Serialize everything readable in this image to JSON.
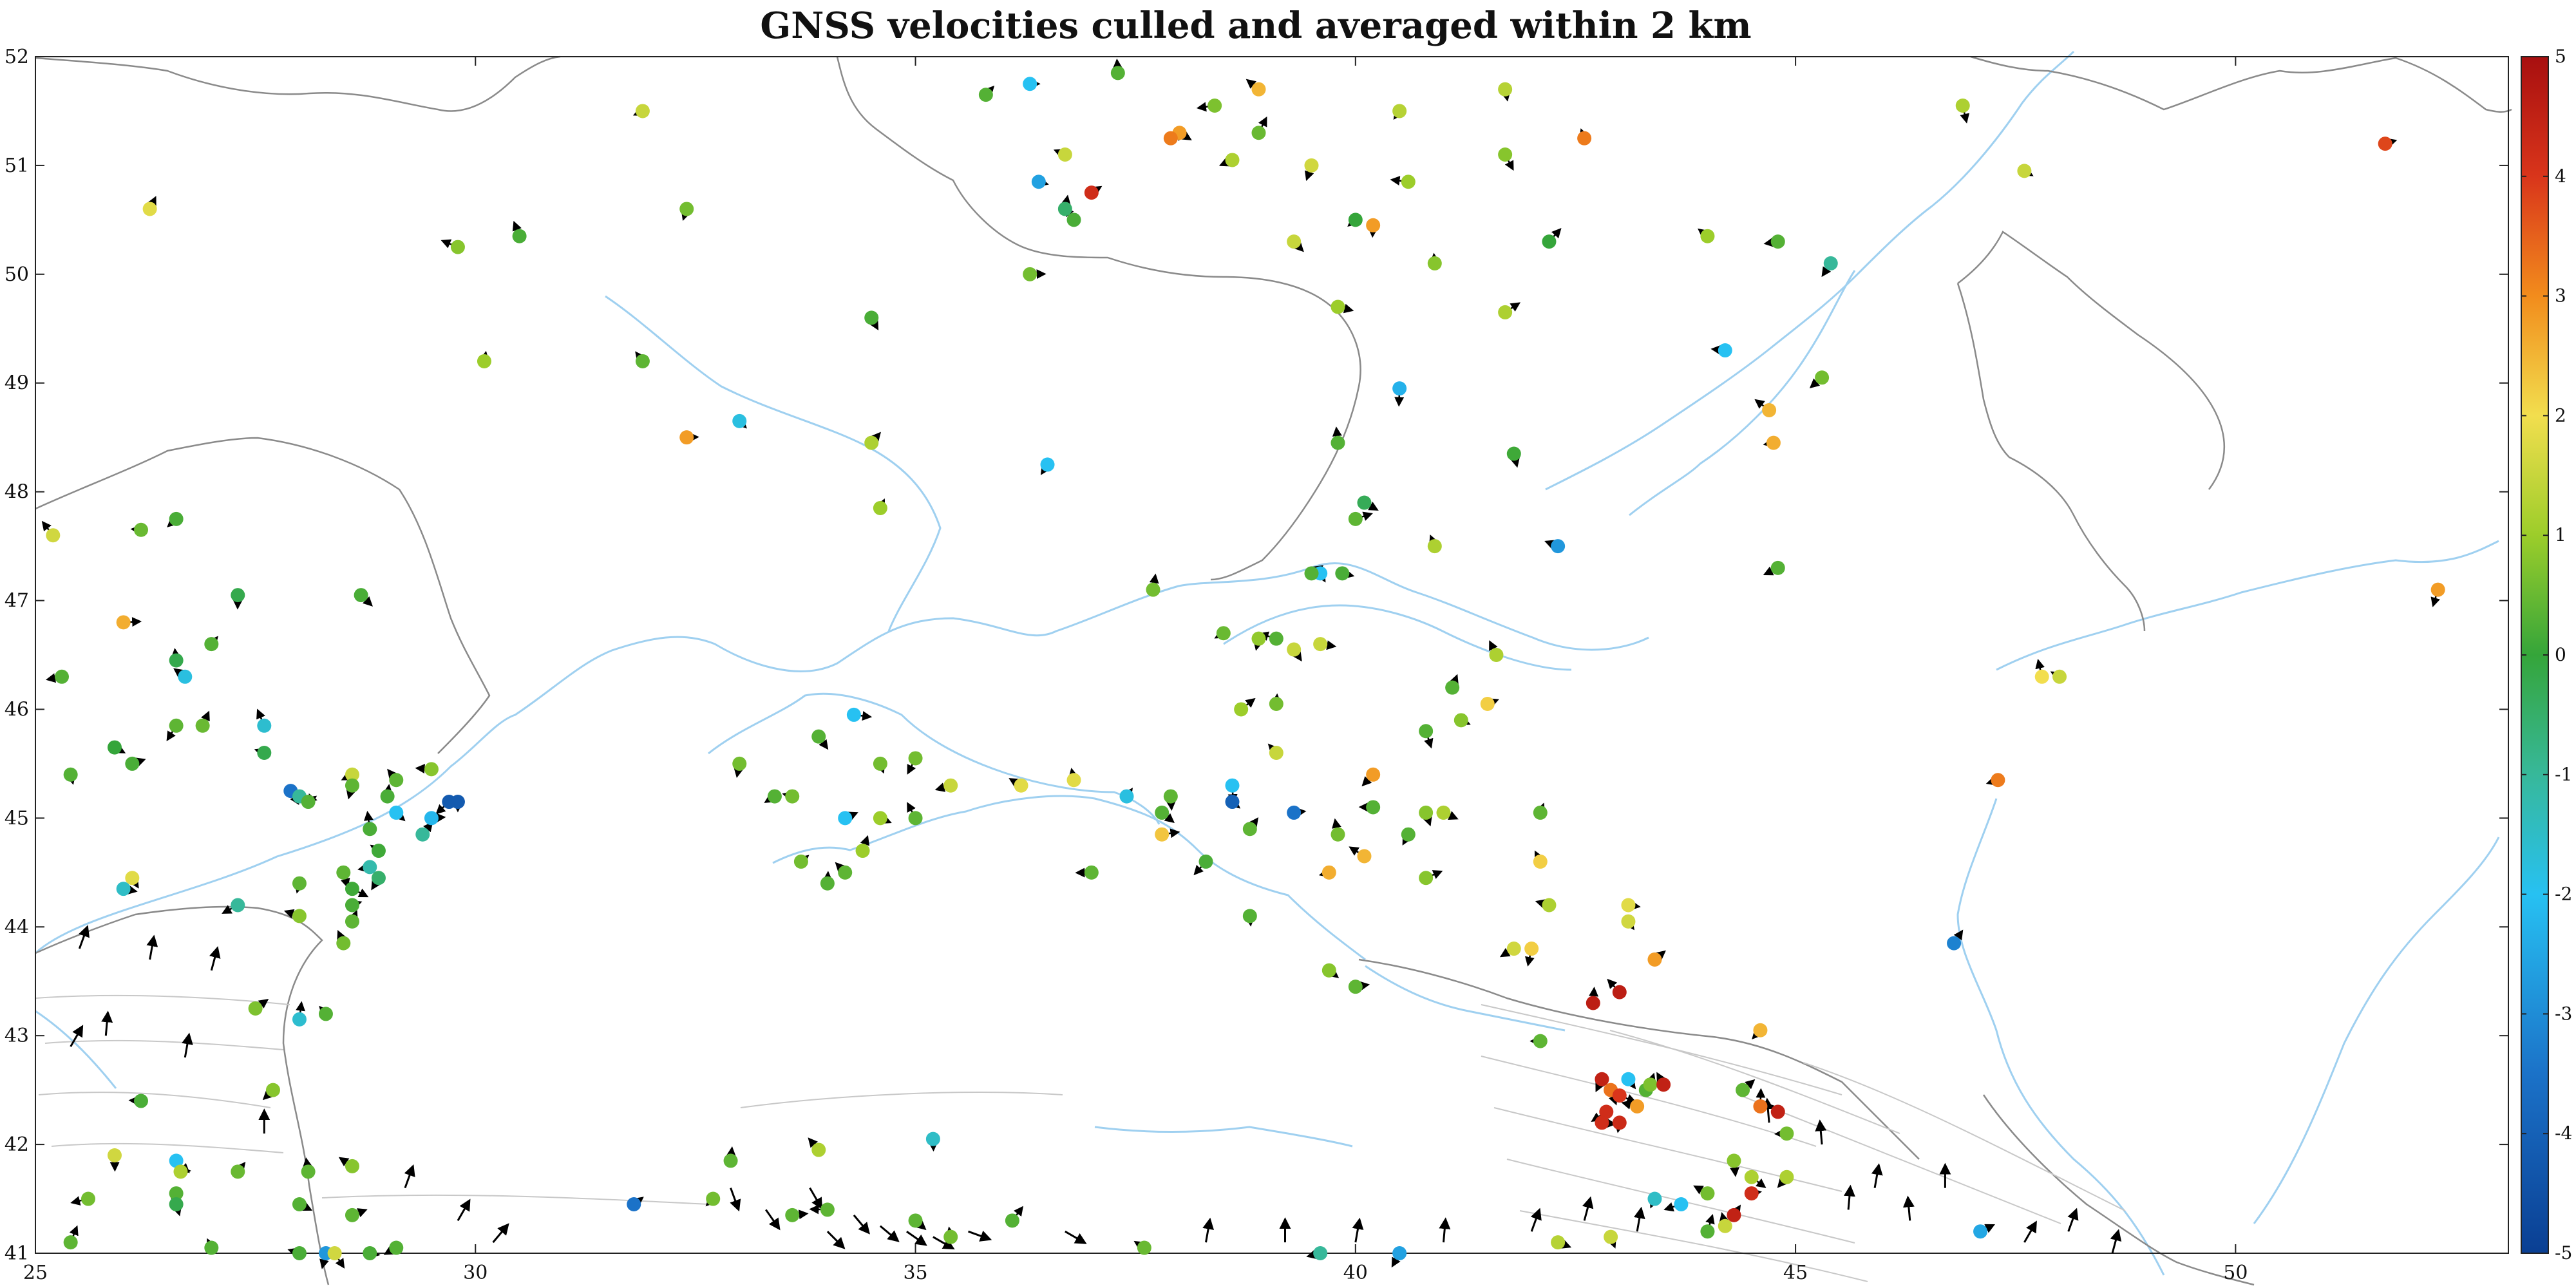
{
  "chart_data": {
    "type": "scatter",
    "title": "GNSS velocities culled and averaged within 2 km",
    "xlabel": "",
    "ylabel": "",
    "xlim": [
      25,
      53.1
    ],
    "ylim": [
      41,
      52
    ],
    "x_ticks": [
      "25",
      "30",
      "35",
      "40",
      "45",
      "50"
    ],
    "y_ticks": [
      "41",
      "42",
      "43",
      "44",
      "45",
      "46",
      "47",
      "48",
      "49",
      "50",
      "51",
      "52"
    ],
    "grid": false,
    "colorbar": {
      "lim": [
        -5,
        5
      ],
      "ticks": [
        "-5",
        "-4",
        "-3",
        "-2",
        "-1",
        "0",
        "1",
        "2",
        "3",
        "4",
        "5"
      ],
      "placement": "right"
    },
    "colors": {
      "coast": "#9fd0f0",
      "border": "#8a8a8a",
      "fault": "#c8c8c8",
      "arrow": "#000000"
    },
    "points": [
      {
        "x": 36.3,
        "y": 51.75,
        "v": -2
      },
      {
        "x": 35.8,
        "y": 51.65,
        "v": 0.3
      },
      {
        "x": 37.3,
        "y": 51.85,
        "v": 0.3
      },
      {
        "x": 38.9,
        "y": 51.7,
        "v": 2.5
      },
      {
        "x": 38.4,
        "y": 51.55,
        "v": 0.7
      },
      {
        "x": 40.5,
        "y": 51.5,
        "v": 1.3
      },
      {
        "x": 41.7,
        "y": 51.7,
        "v": 1.3
      },
      {
        "x": 38.0,
        "y": 51.3,
        "v": 2.8
      },
      {
        "x": 37.9,
        "y": 51.25,
        "v": 3.2
      },
      {
        "x": 38.9,
        "y": 51.3,
        "v": 0.5
      },
      {
        "x": 42.6,
        "y": 51.25,
        "v": 3.2
      },
      {
        "x": 36.7,
        "y": 51.1,
        "v": 1.5
      },
      {
        "x": 38.6,
        "y": 51.05,
        "v": 1.2
      },
      {
        "x": 39.5,
        "y": 51.0,
        "v": 1.6
      },
      {
        "x": 41.7,
        "y": 51.1,
        "v": 0.8
      },
      {
        "x": 36.4,
        "y": 50.85,
        "v": -2.6
      },
      {
        "x": 37.0,
        "y": 50.75,
        "v": 4.2
      },
      {
        "x": 36.7,
        "y": 50.6,
        "v": -0.5
      },
      {
        "x": 36.8,
        "y": 50.5,
        "v": 0.2
      },
      {
        "x": 40.6,
        "y": 50.85,
        "v": 1.0
      },
      {
        "x": 40.0,
        "y": 50.5,
        "v": 0.0
      },
      {
        "x": 40.2,
        "y": 50.45,
        "v": 2.8
      },
      {
        "x": 39.3,
        "y": 50.3,
        "v": 1.5
      },
      {
        "x": 36.3,
        "y": 50.0,
        "v": 0.6
      },
      {
        "x": 42.2,
        "y": 50.3,
        "v": 0.0
      },
      {
        "x": 40.9,
        "y": 50.1,
        "v": 0.8
      },
      {
        "x": 44.0,
        "y": 50.35,
        "v": 1.0
      },
      {
        "x": 44.8,
        "y": 50.3,
        "v": 0.3
      },
      {
        "x": 45.4,
        "y": 50.1,
        "v": -1.0
      },
      {
        "x": 46.9,
        "y": 51.55,
        "v": 1.2
      },
      {
        "x": 47.6,
        "y": 50.95,
        "v": 1.5
      },
      {
        "x": 51.7,
        "y": 51.2,
        "v": 3.8
      },
      {
        "x": 26.3,
        "y": 50.6,
        "v": 1.8
      },
      {
        "x": 30.5,
        "y": 50.35,
        "v": 0.2
      },
      {
        "x": 29.8,
        "y": 50.25,
        "v": 0.8
      },
      {
        "x": 31.9,
        "y": 51.5,
        "v": 1.5
      },
      {
        "x": 32.4,
        "y": 50.6,
        "v": 0.6
      },
      {
        "x": 34.5,
        "y": 49.6,
        "v": 0.2
      },
      {
        "x": 39.8,
        "y": 49.7,
        "v": 1.0
      },
      {
        "x": 41.7,
        "y": 49.65,
        "v": 1.2
      },
      {
        "x": 30.1,
        "y": 49.2,
        "v": 1.0
      },
      {
        "x": 31.9,
        "y": 49.2,
        "v": 0.4
      },
      {
        "x": 44.2,
        "y": 49.3,
        "v": -2.0
      },
      {
        "x": 45.3,
        "y": 49.05,
        "v": 0.6
      },
      {
        "x": 40.5,
        "y": 48.95,
        "v": -2.3
      },
      {
        "x": 33.0,
        "y": 48.65,
        "v": -1.8
      },
      {
        "x": 32.4,
        "y": 48.5,
        "v": 2.8
      },
      {
        "x": 34.5,
        "y": 48.45,
        "v": 1.2
      },
      {
        "x": 39.8,
        "y": 48.45,
        "v": 0.3
      },
      {
        "x": 44.7,
        "y": 48.75,
        "v": 2.5
      },
      {
        "x": 44.75,
        "y": 48.45,
        "v": 2.6
      },
      {
        "x": 36.5,
        "y": 48.25,
        "v": -2.0
      },
      {
        "x": 41.8,
        "y": 48.35,
        "v": 0.1
      },
      {
        "x": 40.1,
        "y": 47.9,
        "v": -0.3
      },
      {
        "x": 40.0,
        "y": 47.75,
        "v": 0.4
      },
      {
        "x": 34.6,
        "y": 47.85,
        "v": 1.0
      },
      {
        "x": 40.9,
        "y": 47.5,
        "v": 1.2
      },
      {
        "x": 42.3,
        "y": 47.5,
        "v": -2.8
      },
      {
        "x": 44.8,
        "y": 47.3,
        "v": 0.3
      },
      {
        "x": 52.3,
        "y": 47.1,
        "v": 2.8
      },
      {
        "x": 39.6,
        "y": 47.25,
        "v": -2.0
      },
      {
        "x": 39.85,
        "y": 47.25,
        "v": 0.2
      },
      {
        "x": 39.5,
        "y": 47.25,
        "v": 0.3
      },
      {
        "x": 37.7,
        "y": 47.1,
        "v": 0.6
      },
      {
        "x": 25.2,
        "y": 47.6,
        "v": 1.6
      },
      {
        "x": 26.2,
        "y": 47.65,
        "v": 0.5
      },
      {
        "x": 26.6,
        "y": 47.75,
        "v": 0.2
      },
      {
        "x": 27.3,
        "y": 47.05,
        "v": -0.2
      },
      {
        "x": 28.7,
        "y": 47.05,
        "v": 0.2
      },
      {
        "x": 26.0,
        "y": 46.8,
        "v": 2.6
      },
      {
        "x": 27.0,
        "y": 46.6,
        "v": 0.3
      },
      {
        "x": 26.6,
        "y": 46.45,
        "v": -0.2
      },
      {
        "x": 26.7,
        "y": 46.3,
        "v": -1.8
      },
      {
        "x": 25.3,
        "y": 46.3,
        "v": 0.3
      },
      {
        "x": 26.6,
        "y": 45.85,
        "v": 0.4
      },
      {
        "x": 25.4,
        "y": 45.4,
        "v": 0.3
      },
      {
        "x": 25.9,
        "y": 45.65,
        "v": 0.0
      },
      {
        "x": 26.1,
        "y": 45.5,
        "v": 0.2
      },
      {
        "x": 26.9,
        "y": 45.85,
        "v": 0.5
      },
      {
        "x": 27.6,
        "y": 45.85,
        "v": -1.6
      },
      {
        "x": 27.6,
        "y": 45.6,
        "v": -0.2
      },
      {
        "x": 28.6,
        "y": 45.4,
        "v": 1.5
      },
      {
        "x": 28.6,
        "y": 45.3,
        "v": 0.4
      },
      {
        "x": 27.9,
        "y": 45.25,
        "v": -3.5
      },
      {
        "x": 28.0,
        "y": 45.2,
        "v": -1.0
      },
      {
        "x": 28.1,
        "y": 45.15,
        "v": 0.3
      },
      {
        "x": 29.0,
        "y": 45.2,
        "v": 0.2
      },
      {
        "x": 29.1,
        "y": 45.35,
        "v": 0.4
      },
      {
        "x": 29.5,
        "y": 45.45,
        "v": 0.8
      },
      {
        "x": 29.7,
        "y": 45.15,
        "v": -4.2
      },
      {
        "x": 29.8,
        "y": 45.15,
        "v": -4.2
      },
      {
        "x": 29.1,
        "y": 45.05,
        "v": -2.0
      },
      {
        "x": 29.5,
        "y": 45.0,
        "v": -2.2
      },
      {
        "x": 29.4,
        "y": 44.85,
        "v": -1.0
      },
      {
        "x": 28.8,
        "y": 44.9,
        "v": 0.2
      },
      {
        "x": 28.9,
        "y": 44.7,
        "v": 0.1
      },
      {
        "x": 28.8,
        "y": 44.55,
        "v": -1.2
      },
      {
        "x": 28.9,
        "y": 44.45,
        "v": -0.5
      },
      {
        "x": 28.5,
        "y": 44.5,
        "v": 0.4
      },
      {
        "x": 28.6,
        "y": 44.35,
        "v": 0.1
      },
      {
        "x": 28.6,
        "y": 44.2,
        "v": 0.2
      },
      {
        "x": 28.6,
        "y": 44.05,
        "v": 0.4
      },
      {
        "x": 28.5,
        "y": 43.85,
        "v": 0.6
      },
      {
        "x": 28.0,
        "y": 44.1,
        "v": 0.8
      },
      {
        "x": 27.3,
        "y": 44.2,
        "v": -1.0
      },
      {
        "x": 28.0,
        "y": 44.4,
        "v": 0.4
      },
      {
        "x": 26.1,
        "y": 44.45,
        "v": 1.8
      },
      {
        "x": 26.0,
        "y": 44.35,
        "v": -1.5
      },
      {
        "x": 27.5,
        "y": 43.25,
        "v": 0.7
      },
      {
        "x": 28.0,
        "y": 43.15,
        "v": -1.6
      },
      {
        "x": 28.3,
        "y": 43.2,
        "v": 0.3
      },
      {
        "x": 26.2,
        "y": 42.4,
        "v": 0.2
      },
      {
        "x": 27.7,
        "y": 42.5,
        "v": 0.8
      },
      {
        "x": 25.9,
        "y": 41.9,
        "v": 1.6
      },
      {
        "x": 26.6,
        "y": 41.85,
        "v": -2.0
      },
      {
        "x": 26.65,
        "y": 41.75,
        "v": 1.2
      },
      {
        "x": 27.3,
        "y": 41.75,
        "v": 0.5
      },
      {
        "x": 28.1,
        "y": 41.75,
        "v": 0.4
      },
      {
        "x": 28.6,
        "y": 41.8,
        "v": 0.8
      },
      {
        "x": 25.6,
        "y": 41.5,
        "v": 0.6
      },
      {
        "x": 26.6,
        "y": 41.55,
        "v": 0.3
      },
      {
        "x": 26.6,
        "y": 41.45,
        "v": -0.2
      },
      {
        "x": 28.0,
        "y": 41.45,
        "v": 0.3
      },
      {
        "x": 28.6,
        "y": 41.35,
        "v": 0.4
      },
      {
        "x": 25.4,
        "y": 41.1,
        "v": 0.4
      },
      {
        "x": 27.0,
        "y": 41.05,
        "v": 0.3
      },
      {
        "x": 28.0,
        "y": 41.0,
        "v": 0.2
      },
      {
        "x": 29.1,
        "y": 41.05,
        "v": 0.3
      },
      {
        "x": 28.3,
        "y": 41.0,
        "v": -2.8
      },
      {
        "x": 28.4,
        "y": 41.0,
        "v": 1.6
      },
      {
        "x": 28.8,
        "y": 41.0,
        "v": 0.2
      },
      {
        "x": 31.8,
        "y": 41.45,
        "v": -3.5
      },
      {
        "x": 32.9,
        "y": 41.85,
        "v": 0.4
      },
      {
        "x": 33.9,
        "y": 41.95,
        "v": 1.2
      },
      {
        "x": 34.0,
        "y": 41.4,
        "v": 0.4
      },
      {
        "x": 32.7,
        "y": 41.5,
        "v": 0.6
      },
      {
        "x": 35.2,
        "y": 42.05,
        "v": -1.5
      },
      {
        "x": 35.0,
        "y": 41.3,
        "v": 0.4
      },
      {
        "x": 33.6,
        "y": 41.35,
        "v": 0.4
      },
      {
        "x": 36.1,
        "y": 41.3,
        "v": 0.3
      },
      {
        "x": 35.4,
        "y": 41.15,
        "v": 0.6
      },
      {
        "x": 37.6,
        "y": 41.05,
        "v": 0.5
      },
      {
        "x": 39.6,
        "y": 41.0,
        "v": -1.0
      },
      {
        "x": 40.5,
        "y": 41.0,
        "v": -2.6
      },
      {
        "x": 40.8,
        "y": 45.8,
        "v": 0.3
      },
      {
        "x": 41.2,
        "y": 45.9,
        "v": 0.8
      },
      {
        "x": 41.5,
        "y": 46.05,
        "v": 2.2
      },
      {
        "x": 41.1,
        "y": 46.2,
        "v": 0.3
      },
      {
        "x": 41.6,
        "y": 46.5,
        "v": 1.2
      },
      {
        "x": 39.1,
        "y": 46.65,
        "v": 0.3
      },
      {
        "x": 38.5,
        "y": 46.7,
        "v": 0.5
      },
      {
        "x": 38.9,
        "y": 46.65,
        "v": 0.9
      },
      {
        "x": 39.3,
        "y": 46.55,
        "v": 1.5
      },
      {
        "x": 39.6,
        "y": 46.6,
        "v": 1.5
      },
      {
        "x": 38.7,
        "y": 46.0,
        "v": 1.0
      },
      {
        "x": 39.1,
        "y": 46.05,
        "v": 0.6
      },
      {
        "x": 39.1,
        "y": 45.6,
        "v": 1.5
      },
      {
        "x": 40.2,
        "y": 45.1,
        "v": 0.3
      },
      {
        "x": 40.2,
        "y": 45.4,
        "v": 2.8
      },
      {
        "x": 38.6,
        "y": 45.3,
        "v": -2.0
      },
      {
        "x": 38.6,
        "y": 45.15,
        "v": -4.0
      },
      {
        "x": 39.3,
        "y": 45.05,
        "v": -3.5
      },
      {
        "x": 38.8,
        "y": 44.9,
        "v": 0.4
      },
      {
        "x": 39.8,
        "y": 44.85,
        "v": 0.6
      },
      {
        "x": 40.1,
        "y": 44.65,
        "v": 2.5
      },
      {
        "x": 39.7,
        "y": 44.5,
        "v": 2.6
      },
      {
        "x": 40.6,
        "y": 44.85,
        "v": 0.3
      },
      {
        "x": 40.8,
        "y": 45.05,
        "v": 0.8
      },
      {
        "x": 41.0,
        "y": 45.05,
        "v": 1.2
      },
      {
        "x": 40.8,
        "y": 44.45,
        "v": 0.8
      },
      {
        "x": 42.1,
        "y": 45.05,
        "v": 0.4
      },
      {
        "x": 42.1,
        "y": 44.6,
        "v": 2.2
      },
      {
        "x": 42.2,
        "y": 44.2,
        "v": 1.2
      },
      {
        "x": 41.8,
        "y": 43.8,
        "v": 1.6
      },
      {
        "x": 42.0,
        "y": 43.8,
        "v": 2.2
      },
      {
        "x": 43.1,
        "y": 44.05,
        "v": 1.6
      },
      {
        "x": 43.1,
        "y": 44.2,
        "v": 1.8
      },
      {
        "x": 43.4,
        "y": 43.7,
        "v": 2.8
      },
      {
        "x": 42.7,
        "y": 43.3,
        "v": 4.6
      },
      {
        "x": 43.0,
        "y": 43.4,
        "v": 4.6
      },
      {
        "x": 42.1,
        "y": 42.95,
        "v": 0.4
      },
      {
        "x": 44.6,
        "y": 43.05,
        "v": 2.5
      },
      {
        "x": 37.9,
        "y": 45.2,
        "v": 0.4
      },
      {
        "x": 37.8,
        "y": 45.05,
        "v": 0.3
      },
      {
        "x": 37.8,
        "y": 44.85,
        "v": 2.3
      },
      {
        "x": 37.4,
        "y": 45.2,
        "v": -1.8
      },
      {
        "x": 36.8,
        "y": 45.35,
        "v": 1.8
      },
      {
        "x": 36.2,
        "y": 45.3,
        "v": 1.8
      },
      {
        "x": 35.4,
        "y": 45.3,
        "v": 1.5
      },
      {
        "x": 35.0,
        "y": 45.55,
        "v": 0.6
      },
      {
        "x": 34.6,
        "y": 45.5,
        "v": 0.6
      },
      {
        "x": 34.6,
        "y": 45.0,
        "v": 1.0
      },
      {
        "x": 34.2,
        "y": 45.0,
        "v": -2.0
      },
      {
        "x": 34.4,
        "y": 44.7,
        "v": 1.0
      },
      {
        "x": 35.0,
        "y": 45.0,
        "v": 0.4
      },
      {
        "x": 33.6,
        "y": 45.2,
        "v": 0.6
      },
      {
        "x": 33.4,
        "y": 45.2,
        "v": 0.3
      },
      {
        "x": 33.0,
        "y": 45.5,
        "v": 0.6
      },
      {
        "x": 33.9,
        "y": 45.75,
        "v": 0.3
      },
      {
        "x": 34.3,
        "y": 45.95,
        "v": -2.0
      },
      {
        "x": 33.7,
        "y": 44.6,
        "v": 0.6
      },
      {
        "x": 34.0,
        "y": 44.4,
        "v": 0.3
      },
      {
        "x": 34.2,
        "y": 44.5,
        "v": 0.4
      },
      {
        "x": 37.0,
        "y": 44.5,
        "v": 0.4
      },
      {
        "x": 38.3,
        "y": 44.6,
        "v": 0.2
      },
      {
        "x": 38.8,
        "y": 44.1,
        "v": 0.3
      },
      {
        "x": 39.7,
        "y": 43.6,
        "v": 0.8
      },
      {
        "x": 40.0,
        "y": 43.45,
        "v": 0.4
      },
      {
        "x": 46.8,
        "y": 43.85,
        "v": -3.2
      },
      {
        "x": 47.8,
        "y": 46.3,
        "v": 2.0
      },
      {
        "x": 48.0,
        "y": 46.3,
        "v": 1.5
      },
      {
        "x": 47.3,
        "y": 45.35,
        "v": 3.2
      },
      {
        "x": 42.8,
        "y": 42.6,
        "v": 4.5
      },
      {
        "x": 42.9,
        "y": 42.5,
        "v": 3.3
      },
      {
        "x": 43.0,
        "y": 42.45,
        "v": 4.0
      },
      {
        "x": 43.3,
        "y": 42.5,
        "v": 0.3
      },
      {
        "x": 43.35,
        "y": 42.55,
        "v": 0.7
      },
      {
        "x": 43.5,
        "y": 42.55,
        "v": 4.5
      },
      {
        "x": 43.2,
        "y": 42.35,
        "v": 2.8
      },
      {
        "x": 42.85,
        "y": 42.3,
        "v": 4.2
      },
      {
        "x": 43.0,
        "y": 42.2,
        "v": 4.3
      },
      {
        "x": 43.1,
        "y": 42.6,
        "v": -2.0
      },
      {
        "x": 42.8,
        "y": 42.2,
        "v": 4.2
      },
      {
        "x": 44.4,
        "y": 42.5,
        "v": 0.4
      },
      {
        "x": 44.6,
        "y": 42.35,
        "v": 3.3
      },
      {
        "x": 44.8,
        "y": 42.3,
        "v": 4.5
      },
      {
        "x": 44.9,
        "y": 42.1,
        "v": 0.6
      },
      {
        "x": 44.9,
        "y": 41.7,
        "v": 1.2
      },
      {
        "x": 44.3,
        "y": 41.85,
        "v": 0.8
      },
      {
        "x": 44.5,
        "y": 41.7,
        "v": 1.2
      },
      {
        "x": 44.5,
        "y": 41.55,
        "v": 4.2
      },
      {
        "x": 44.3,
        "y": 41.35,
        "v": 4.5
      },
      {
        "x": 44.2,
        "y": 41.25,
        "v": 1.5
      },
      {
        "x": 44.0,
        "y": 41.55,
        "v": 0.6
      },
      {
        "x": 43.7,
        "y": 41.45,
        "v": -2.0
      },
      {
        "x": 43.4,
        "y": 41.5,
        "v": -1.5
      },
      {
        "x": 42.9,
        "y": 41.15,
        "v": 1.5
      },
      {
        "x": 42.3,
        "y": 41.1,
        "v": 1.3
      },
      {
        "x": 47.1,
        "y": 41.2,
        "v": -2.5
      },
      {
        "x": 44.0,
        "y": 41.2,
        "v": 0.3
      }
    ]
  }
}
